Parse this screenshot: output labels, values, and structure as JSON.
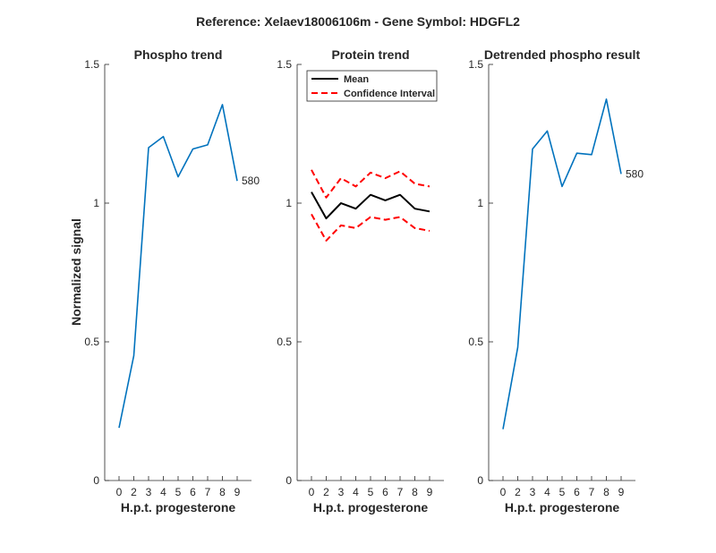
{
  "figure_title": "Reference:  Xelaev18006106m - Gene Symbol:  HDGFL2",
  "colors": {
    "series_blue": "#0072BD",
    "mean_black": "#000000",
    "ci_red": "#FF0000",
    "axis": "#262626"
  },
  "chart_data": [
    {
      "type": "line",
      "title": "Phospho trend",
      "xlabel": "H.p.t. progesterone",
      "ylabel": "Normalized signal",
      "x": [
        0,
        2,
        3,
        4,
        5,
        6,
        7,
        8,
        9
      ],
      "x_tick_labels": [
        "0",
        "2",
        "3",
        "4",
        "5",
        "6",
        "7",
        "8",
        "9"
      ],
      "ylim": [
        0,
        1.5
      ],
      "y_ticks": [
        0,
        0.5,
        1,
        1.5
      ],
      "y_tick_labels": [
        "0",
        "0.5",
        "1",
        "1.5"
      ],
      "series": [
        {
          "values": [
            0.19,
            0.45,
            1.2,
            1.24,
            1.095,
            1.195,
            1.21,
            1.355,
            1.08
          ],
          "color": "#0072BD",
          "style": "solid"
        }
      ],
      "annotation": {
        "text": "580",
        "at_index": 8
      },
      "legend": null
    },
    {
      "type": "line",
      "title": "Protein trend",
      "xlabel": "H.p.t. progesterone",
      "ylabel": "",
      "x": [
        0,
        2,
        3,
        4,
        5,
        6,
        7,
        8,
        9
      ],
      "x_tick_labels": [
        "0",
        "2",
        "3",
        "4",
        "5",
        "6",
        "7",
        "8",
        "9"
      ],
      "ylim": [
        0,
        1.5
      ],
      "y_ticks": [
        0,
        0.5,
        1,
        1.5
      ],
      "y_tick_labels": [
        "0",
        "0.5",
        "1",
        "1.5"
      ],
      "series": [
        {
          "name": "Mean",
          "values": [
            1.04,
            0.945,
            1.0,
            0.98,
            1.03,
            1.01,
            1.03,
            0.98,
            0.97
          ],
          "color": "#000000",
          "style": "solid"
        },
        {
          "name": "Confidence Interval",
          "values": [
            1.12,
            1.02,
            1.09,
            1.06,
            1.11,
            1.09,
            1.115,
            1.07,
            1.06
          ],
          "color": "#FF0000",
          "style": "dashed"
        },
        {
          "values": [
            0.96,
            0.865,
            0.92,
            0.91,
            0.95,
            0.94,
            0.95,
            0.91,
            0.9
          ],
          "color": "#FF0000",
          "style": "dashed"
        }
      ],
      "annotation": null,
      "legend": {
        "position": "top-left",
        "entries": [
          "Mean",
          "Confidence Interval"
        ]
      }
    },
    {
      "type": "line",
      "title": "Detrended phospho result",
      "xlabel": "H.p.t. progesterone",
      "ylabel": "",
      "x": [
        0,
        2,
        3,
        4,
        5,
        6,
        7,
        8,
        9
      ],
      "x_tick_labels": [
        "0",
        "2",
        "3",
        "4",
        "5",
        "6",
        "7",
        "8",
        "9"
      ],
      "ylim": [
        0,
        1.5
      ],
      "y_ticks": [
        0,
        0.5,
        1,
        1.5
      ],
      "y_tick_labels": [
        "0",
        "0.5",
        "1",
        "1.5"
      ],
      "series": [
        {
          "values": [
            0.185,
            0.48,
            1.195,
            1.26,
            1.06,
            1.18,
            1.175,
            1.375,
            1.105
          ],
          "color": "#0072BD",
          "style": "solid"
        }
      ],
      "annotation": {
        "text": "580",
        "at_index": 8
      },
      "legend": null
    }
  ]
}
